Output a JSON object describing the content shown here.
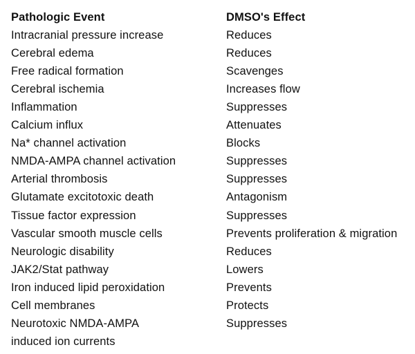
{
  "table": {
    "headers": {
      "event": "Pathologic Event",
      "effect": "DMSO's Effect"
    },
    "rows": [
      {
        "event": "Intracranial pressure increase",
        "effect": "Reduces"
      },
      {
        "event": "Cerebral edema",
        "effect": "Reduces"
      },
      {
        "event": "Free radical formation",
        "effect": "Scavenges"
      },
      {
        "event": "Cerebral ischemia",
        "effect": "Increases flow"
      },
      {
        "event": "Inflammation",
        "effect": "Suppresses"
      },
      {
        "event": "Calcium influx",
        "effect": "Attenuates"
      },
      {
        "event": "Na* channel activation",
        "effect": "Blocks"
      },
      {
        "event": "NMDA-AMPA channel activation",
        "effect": "Suppresses"
      },
      {
        "event": "Arterial thrombosis",
        "effect": "Suppresses"
      },
      {
        "event": "Glutamate excitotoxic death",
        "effect": "Antagonism"
      },
      {
        "event": "Tissue factor expression",
        "effect": "Suppresses"
      },
      {
        "event": "Vascular smooth muscle cells",
        "effect": "Prevents proliferation & migration"
      },
      {
        "event": "Neurologic disability",
        "effect": "Reduces"
      },
      {
        "event": "JAK2/Stat pathway",
        "effect": "Lowers"
      },
      {
        "event": "Iron induced lipid peroxidation",
        "effect": "Prevents"
      },
      {
        "event": "Cell membranes",
        "effect": "Protects"
      },
      {
        "event": "Neurotoxic NMDA-AMPA",
        "effect": "Suppresses"
      },
      {
        "event": "induced ion currents",
        "effect": ""
      }
    ]
  }
}
